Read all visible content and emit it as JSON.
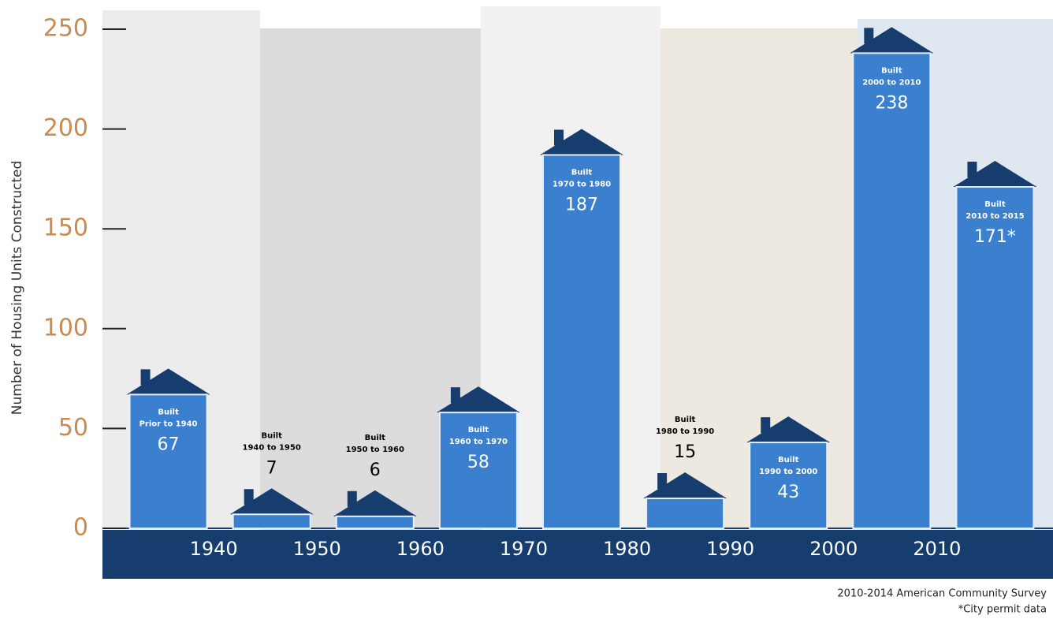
{
  "chart_data": {
    "type": "bar",
    "y_axis_label": "Number of Housing Units Constructed",
    "bar_label_prefix": "Built",
    "categories": [
      "Prior to 1940",
      "1940 to 1950",
      "1950 to 1960",
      "1960 to 1970",
      "1970 to 1980",
      "1980 to 1990",
      "1990 to 2000",
      "2000 to 2010",
      "2010 to 2015"
    ],
    "values": [
      67,
      7,
      6,
      58,
      187,
      15,
      43,
      238,
      171
    ],
    "value_labels": [
      "67",
      "7",
      "6",
      "58",
      "187",
      "15",
      "43",
      "238",
      "171*"
    ],
    "color": "#3a80cf",
    "roof_color": "#163d6e",
    "xticks": [
      1940,
      1950,
      1960,
      1970,
      1980,
      1990,
      2000,
      2010
    ],
    "ylim": [
      0,
      250
    ],
    "yticks": [
      0,
      50,
      100,
      150,
      200,
      250
    ],
    "notes": [
      "2010-2014 American Community Survey",
      "*City permit data"
    ]
  }
}
